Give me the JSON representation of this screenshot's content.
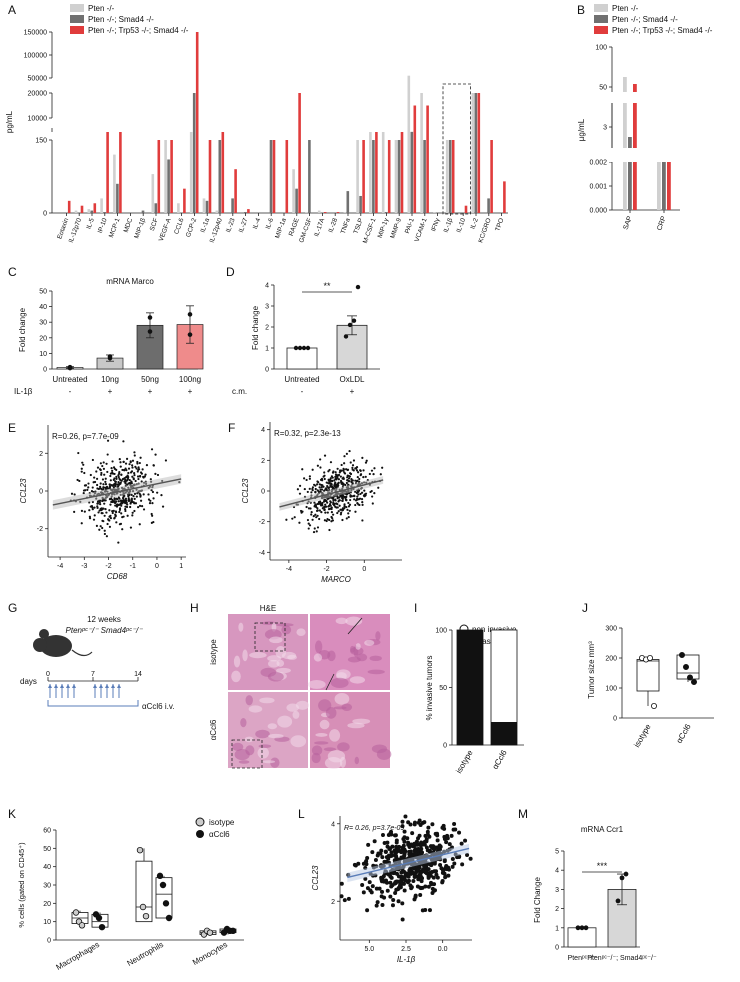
{
  "colors": {
    "pten": "#d0d0d0",
    "pten_smad4": "#707070",
    "pten_trp53_smad4": "#e03c3c",
    "neutral": "#f4f4f4",
    "line": "#5a7db8"
  },
  "chart_data": [
    {
      "panel": "A",
      "type": "bar",
      "ylabel": "pg/mL",
      "yticks": [
        "0",
        "150",
        "10000",
        "20000",
        "50000",
        "100000",
        "150000"
      ],
      "legend": [
        "Pten -/-",
        "Pten -/-; Smad4 -/-",
        "Pten -/-; Trp53 -/-; Smad4 -/-"
      ],
      "categories": [
        "Eotaxin",
        "IL-12p70",
        "IL-5",
        "IP-10",
        "MCP-1",
        "MDC",
        "MIP-1β",
        "SCF",
        "VEGF-A",
        "CCL6",
        "GCP-2",
        "IL-1a",
        "IL-12p40",
        "IL-23",
        "IL-27",
        "IL-4",
        "IL-6",
        "MIP-1a",
        "RAGE",
        "GM-CSF",
        "IL-17A",
        "IL-28",
        "TNFa",
        "TSLP",
        "M-CSF-1",
        "MIP-1γ",
        "MMP-9",
        "PAI-1",
        "VCAM-1",
        "IFNγ",
        "IL-1β",
        "IL-10",
        "IL-2",
        "KC/GRO",
        "TPO"
      ],
      "series": [
        {
          "name": "Pten -/-",
          "values": [
            0,
            5,
            8,
            30,
            120,
            0,
            0,
            80,
            150,
            20,
            200,
            30,
            5,
            0,
            0,
            0,
            0,
            0,
            90,
            2,
            5,
            0,
            2,
            150,
            152,
            155,
            150,
            55000,
            20000,
            2,
            150,
            0,
            20000,
            0,
            0
          ]
        },
        {
          "name": "Pten -/-; Smad4 -/-",
          "values": [
            0,
            0,
            5,
            2,
            60,
            0,
            5,
            20,
            110,
            0,
            20000,
            25,
            150,
            30,
            2,
            0,
            150,
            0,
            50,
            150,
            0,
            0,
            45,
            35,
            150,
            2,
            150,
            500,
            150,
            0,
            150,
            0,
            20000,
            30,
            0
          ]
        },
        {
          "name": "Pten -/-; Trp53 -/-; Smad4 -/-",
          "values": [
            25,
            15,
            20,
            152,
            155,
            0,
            0,
            150,
            150,
            50,
            150000,
            150,
            152,
            90,
            8,
            0,
            150,
            150,
            20000,
            0,
            2,
            2,
            0,
            150,
            153,
            150,
            153,
            15000,
            15000,
            0,
            150,
            15,
            20000,
            150,
            65
          ]
        }
      ]
    },
    {
      "panel": "B",
      "type": "bar",
      "ylabel": "µg/mL",
      "yticks": [
        "0.000",
        "0.001",
        "0.002",
        "3",
        "50",
        "100"
      ],
      "legend": [
        "Pten -/-",
        "Pten -/-; Smad4 -/-",
        "Pten -/-; Trp53 -/-; Smad4 -/-"
      ],
      "categories": [
        "SAP",
        "CRP"
      ],
      "series": [
        {
          "name": "Pten -/-",
          "values": [
            60,
            0.002
          ]
        },
        {
          "name": "Pten -/-; Smad4 -/-",
          "values": [
            1.5,
            0.002
          ]
        },
        {
          "name": "Pten -/-; Trp53 -/-; Smad4 -/-",
          "values": [
            50,
            0.002
          ]
        }
      ]
    },
    {
      "panel": "C",
      "type": "bar",
      "title": "mRNA Marco",
      "ylabel": "Fold change",
      "ylim": [
        0,
        50
      ],
      "yticks": [
        "0",
        "10",
        "20",
        "30",
        "40",
        "50"
      ],
      "row_label": "IL-1β",
      "categories": [
        "Untreated",
        "10ng",
        "50ng",
        "100ng"
      ],
      "signs": [
        "-",
        "+",
        "+",
        "+"
      ],
      "values": [
        1,
        7,
        28,
        28.5
      ],
      "errors": [
        0.5,
        2,
        8,
        12
      ]
    },
    {
      "panel": "D",
      "type": "bar",
      "ylabel": "Fold change",
      "ylim": [
        0,
        4
      ],
      "yticks": [
        "0",
        "1",
        "2",
        "3",
        "4"
      ],
      "row_label": "c.m.",
      "categories": [
        "Untreated",
        "OxLDL"
      ],
      "signs": [
        "-",
        "+"
      ],
      "values": [
        1,
        2.08
      ],
      "errors": [
        0,
        0.45
      ],
      "significance": "**"
    },
    {
      "panel": "E",
      "type": "scatter",
      "annotation": "R=0.26, p=7.7e-09",
      "xlabel": "CD68",
      "ylabel": "CCL23",
      "xticks": [
        "-4",
        "-3",
        "-2",
        "-1",
        "0",
        "1"
      ],
      "yticks": [
        "-2",
        "0",
        "2"
      ],
      "xlim": [
        -4.5,
        1.2
      ],
      "ylim": [
        -3.5,
        3.5
      ],
      "fit": {
        "slope": 0.26,
        "intercept": 0.38
      }
    },
    {
      "panel": "F",
      "type": "scatter",
      "annotation": "R=0.32, p=2.3e-13",
      "xlabel": "MARCO",
      "ylabel": "CCL23",
      "xticks": [
        "-4",
        "-2",
        "0"
      ],
      "yticks": [
        "-4",
        "-2",
        "0",
        "2",
        "4"
      ],
      "xlim": [
        -5,
        2
      ],
      "ylim": [
        -4.5,
        4.5
      ],
      "fit": {
        "slope": 0.32,
        "intercept": 0.4
      }
    },
    {
      "panel": "I",
      "type": "bar",
      "ylabel": "% invasive tumors",
      "ylim": [
        0,
        100
      ],
      "yticks": [
        "0",
        "50",
        "100"
      ],
      "legend": [
        "non invasive",
        "invasive"
      ],
      "categories": [
        "isotype",
        "αCcl6"
      ],
      "series": [
        {
          "name": "invasive",
          "values": [
            100,
            20
          ]
        },
        {
          "name": "non invasive",
          "values": [
            0,
            80
          ]
        }
      ]
    },
    {
      "panel": "J",
      "type": "box",
      "ylabel": "Tumor size mm³",
      "ylim": [
        0,
        300
      ],
      "yticks": [
        "0",
        "100",
        "200",
        "300"
      ],
      "categories": [
        "isotype",
        "αCcl6"
      ],
      "boxes": [
        {
          "min": 40,
          "q1": 90,
          "median": 190,
          "q3": 195,
          "max": 200,
          "points": [
            200,
            195,
            200,
            40
          ]
        },
        {
          "min": 120,
          "q1": 130,
          "median": 150,
          "q3": 210,
          "max": 210,
          "points": [
            210,
            170,
            135,
            120
          ]
        }
      ]
    },
    {
      "panel": "K",
      "type": "box",
      "ylabel": "% cells (gated on CD45⁺)",
      "ylim": [
        0,
        60
      ],
      "yticks": [
        "0",
        "10",
        "20",
        "30",
        "40",
        "50",
        "60"
      ],
      "legend": [
        "isotype",
        "αCcl6"
      ],
      "categories": [
        "Macrophages",
        "Neutrophils",
        "Monocytes"
      ],
      "boxes": [
        {
          "group": "Macrophages",
          "series": "isotype",
          "min": 8,
          "q1": 9,
          "median": 12,
          "q3": 15,
          "max": 16,
          "points": [
            15,
            10,
            8
          ]
        },
        {
          "group": "Macrophages",
          "series": "αCcl6",
          "min": 7,
          "q1": 7,
          "median": 10,
          "q3": 14,
          "max": 15,
          "points": [
            14,
            12,
            7
          ]
        },
        {
          "group": "Neutrophils",
          "series": "isotype",
          "min": 10,
          "q1": 10,
          "median": 18,
          "q3": 43,
          "max": 50,
          "points": [
            49,
            18,
            13
          ]
        },
        {
          "group": "Neutrophils",
          "series": "αCcl6",
          "min": 12,
          "q1": 12,
          "median": 25,
          "q3": 34,
          "max": 35,
          "points": [
            35,
            30,
            20,
            12
          ]
        },
        {
          "group": "Monocytes",
          "series": "isotype",
          "min": 3,
          "q1": 3,
          "median": 4,
          "q3": 5,
          "max": 6,
          "points": [
            3,
            5,
            4
          ]
        },
        {
          "group": "Monocytes",
          "series": "αCcl6",
          "min": 3,
          "q1": 4,
          "median": 5,
          "q3": 6,
          "max": 6,
          "points": [
            4,
            6,
            5,
            5
          ]
        }
      ]
    },
    {
      "panel": "L",
      "type": "scatter",
      "annotation": "R= 0.26, p=3.7e-09",
      "xlabel": "IL-1β",
      "ylabel": "CCL23",
      "xticks": [
        "5.0",
        "2.5",
        "0.0"
      ],
      "yticks": [
        "2",
        "4"
      ],
      "xlim": [
        7,
        -2
      ],
      "ylim": [
        1,
        4.2
      ],
      "fit": {
        "slope": -0.09,
        "intercept": 3.2
      }
    },
    {
      "panel": "M",
      "type": "bar",
      "title": "mRNA Ccr1",
      "ylabel": "Fold Change",
      "ylim": [
        0,
        5
      ],
      "yticks": [
        "0",
        "1",
        "2",
        "3",
        "4",
        "5"
      ],
      "categories": [
        "Ptenᵖᶜ⁻/⁻",
        "Ptenᵖᶜ⁻/⁻; Smad4ᵖᶜ⁻/⁻"
      ],
      "values": [
        1,
        3
      ],
      "errors": [
        0,
        0.8
      ],
      "significance": "***"
    }
  ],
  "panels": {
    "A": "A",
    "B": "B",
    "C": "C",
    "D": "D",
    "E": "E",
    "F": "F",
    "G": "G",
    "H": "H",
    "I": "I",
    "J": "J",
    "K": "K",
    "L": "L",
    "M": "M"
  },
  "schematic": {
    "duration": "12 weeks",
    "genotype": "Ptenᵖᶜ⁻/⁻ Smad4ᵖᶜ⁻/⁻",
    "axis_label": "days",
    "ticks": [
      "0",
      "7",
      "14"
    ],
    "treatment": "αCcl6 i.v."
  },
  "histology": {
    "title": "H&E",
    "rows": [
      "isotype",
      "αCcl6"
    ]
  }
}
